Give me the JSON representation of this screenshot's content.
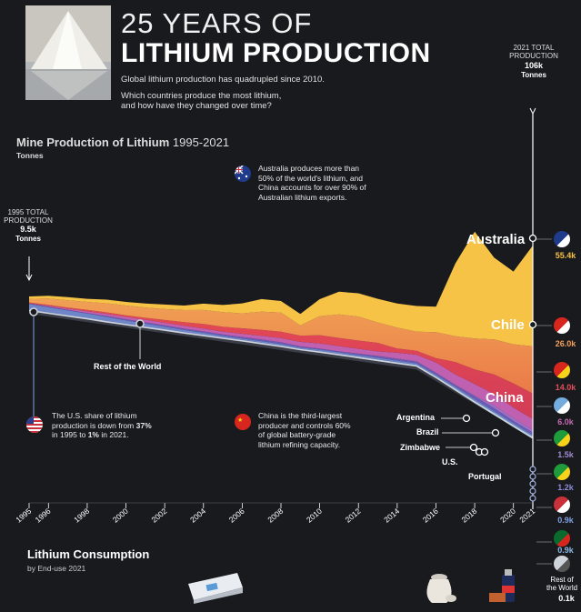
{
  "header": {
    "title_line1": "25 YEARS OF",
    "title_line2": "LITHIUM PRODUCTION",
    "subtitle": "Global lithium production has quadrupled since 2010.",
    "question_line1": "Which countries produce the most lithium,",
    "question_line2": "and how have they changed over time?"
  },
  "total_2021": {
    "line1": "2021 TOTAL",
    "line2": "PRODUCTION",
    "value": "106k",
    "unit": "Tonnes"
  },
  "total_1995": {
    "line1": "1995 TOTAL",
    "line2": "PRODUCTION",
    "value": "9.5k",
    "unit": "Tonnes"
  },
  "chart_heading": {
    "title": "Mine Production of Lithium",
    "years": "1995-2021",
    "units": "Tonnes"
  },
  "notes": {
    "australia": [
      "Australia produces more than",
      "50% of the world's lithium, and",
      "China accounts for over 90% of",
      "Australian lithium exports."
    ],
    "us": {
      "l1": "The U.S. share of lithium",
      "l2a": "production is down from ",
      "l2b": "37%",
      "l3a": "in 1995 to ",
      "l3b": "1%",
      "l3c": " in 2021."
    },
    "china": [
      "China is the third-largest",
      "producer and controls 60%",
      "of global battery-grade",
      "lithium refining capacity."
    ]
  },
  "rest_label": "Rest of the World",
  "country_labels": {
    "australia": "Australia",
    "chile": "Chile",
    "china": "China",
    "argentina": "Argentina",
    "brazil": "Brazil",
    "zimbabwe": "Zimbabwe",
    "us": "U.S.",
    "portugal": "Portugal"
  },
  "legend_values": [
    {
      "country": "Australia",
      "value": "55.4k",
      "color": "#f5c045"
    },
    {
      "country": "Chile",
      "value": "26.0k",
      "color": "#f5a05a"
    },
    {
      "country": "China",
      "value": "14.0k",
      "color": "#e0505a"
    },
    {
      "country": "Argentina",
      "value": "6.0k",
      "color": "#c46ab0"
    },
    {
      "country": "Brazil",
      "value": "1.5k",
      "color": "#a08ad0"
    },
    {
      "country": "Zimbabwe",
      "value": "1.2k",
      "color": "#8c8cd8"
    },
    {
      "country": "U.S.",
      "value": "0.9k",
      "color": "#7fa0e0"
    },
    {
      "country": "Portugal",
      "value": "0.9k",
      "color": "#8fb8e8"
    },
    {
      "country": "Rest of the World",
      "value": "0.1k",
      "color": "#d8d8d8"
    }
  ],
  "rest_world_legend": {
    "l1": "Rest of",
    "l2": "the World"
  },
  "consumption": {
    "title": "Lithium Consumption",
    "sub": "by End-use 2021"
  },
  "chart_data": {
    "type": "area",
    "title": "Mine Production of Lithium 1995-2021",
    "ylabel": "Tonnes",
    "x_tick_labels": [
      "1995",
      "1996",
      "1998",
      "2000",
      "2002",
      "2004",
      "2006",
      "2008",
      "2010",
      "2012",
      "2014",
      "2016",
      "2018",
      "2020",
      "2021"
    ],
    "x": [
      1995,
      1996,
      1997,
      1998,
      1999,
      2000,
      2001,
      2002,
      2003,
      2004,
      2005,
      2006,
      2007,
      2008,
      2009,
      2010,
      2011,
      2012,
      2013,
      2014,
      2015,
      2016,
      2017,
      2018,
      2019,
      2020,
      2021
    ],
    "series": [
      {
        "name": "Rest of the World",
        "values": [
          1.8,
          1.8,
          1.8,
          1.8,
          1.7,
          1.7,
          1.7,
          1.7,
          1.7,
          1.8,
          1.9,
          2.0,
          2.0,
          2.0,
          1.8,
          2.0,
          2.0,
          2.0,
          2.0,
          2.0,
          2.0,
          2.0,
          1.5,
          1.0,
          0.6,
          0.3,
          0.1
        ]
      },
      {
        "name": "Portugal",
        "values": [
          0.1,
          0.1,
          0.1,
          0.1,
          0.1,
          0.1,
          0.1,
          0.1,
          0.2,
          0.3,
          0.3,
          0.4,
          0.5,
          0.5,
          0.4,
          0.5,
          0.5,
          0.5,
          0.6,
          0.6,
          0.6,
          0.6,
          0.8,
          0.8,
          0.9,
          0.9,
          0.9
        ]
      },
      {
        "name": "U.S.",
        "values": [
          3.5,
          3.2,
          3.0,
          2.8,
          2.6,
          2.3,
          2.0,
          1.8,
          1.5,
          1.3,
          1.0,
          0.9,
          0.9,
          0.9,
          0.8,
          0.9,
          0.9,
          0.9,
          0.9,
          0.9,
          0.9,
          0.9,
          0.9,
          0.9,
          0.9,
          0.9,
          0.9
        ]
      },
      {
        "name": "Zimbabwe",
        "values": [
          0.3,
          0.3,
          0.3,
          0.3,
          0.5,
          0.6,
          0.7,
          0.7,
          0.7,
          0.7,
          0.8,
          0.8,
          0.9,
          0.9,
          0.6,
          0.5,
          0.5,
          0.8,
          0.9,
          0.9,
          0.9,
          0.9,
          0.9,
          1.6,
          1.6,
          1.2,
          1.2
        ]
      },
      {
        "name": "Brazil",
        "values": [
          0.0,
          0.0,
          0.0,
          0.0,
          0.0,
          0.0,
          0.0,
          0.0,
          0.0,
          0.0,
          0.0,
          0.0,
          0.0,
          0.0,
          0.0,
          0.0,
          0.0,
          0.0,
          0.1,
          0.2,
          0.2,
          0.2,
          0.2,
          0.3,
          1.4,
          1.4,
          1.5
        ]
      },
      {
        "name": "Argentina",
        "values": [
          0.0,
          0.5,
          0.7,
          1.0,
          1.2,
          1.3,
          1.5,
          1.5,
          1.6,
          1.6,
          1.6,
          1.8,
          2.0,
          2.3,
          2.5,
          2.9,
          2.9,
          2.7,
          2.5,
          3.2,
          3.6,
          5.7,
          5.7,
          6.4,
          6.3,
          5.9,
          6.0
        ]
      },
      {
        "name": "China",
        "values": [
          0.5,
          0.5,
          0.6,
          0.7,
          0.8,
          0.8,
          1.0,
          1.5,
          2.0,
          2.5,
          2.6,
          3.0,
          3.3,
          3.5,
          3.4,
          4.5,
          4.5,
          4.5,
          4.7,
          2.3,
          2.2,
          2.3,
          6.8,
          8.0,
          10.8,
          13.3,
          14.0
        ]
      },
      {
        "name": "Chile",
        "values": [
          2.0,
          3.5,
          4.0,
          4.4,
          5.0,
          5.4,
          5.7,
          6.0,
          6.6,
          7.7,
          8.1,
          8.2,
          10.0,
          10.6,
          5.6,
          10.5,
          12.9,
          13.2,
          11.2,
          11.5,
          10.5,
          14.3,
          14.2,
          17.0,
          19.3,
          21.5,
          26.0
        ]
      },
      {
        "name": "Australia",
        "values": [
          1.3,
          1.5,
          1.7,
          1.7,
          2.0,
          2.0,
          2.2,
          2.5,
          2.5,
          3.5,
          3.9,
          5.5,
          6.9,
          6.3,
          6.3,
          9.3,
          12.5,
          12.8,
          13.0,
          13.3,
          14.1,
          14.0,
          40.0,
          58.8,
          45.0,
          40.0,
          55.4
        ]
      }
    ],
    "total_1995": 9.5,
    "total_2021": 106
  },
  "colors": {
    "background": "#191a1e",
    "australia": "#f5c045",
    "chile": "#f5a05a",
    "chile_dark": "#e97c4a",
    "china": "#e0505a",
    "argentina": "#c46ab0",
    "brazil": "#a08ad0",
    "us": "#7fa0e0"
  }
}
